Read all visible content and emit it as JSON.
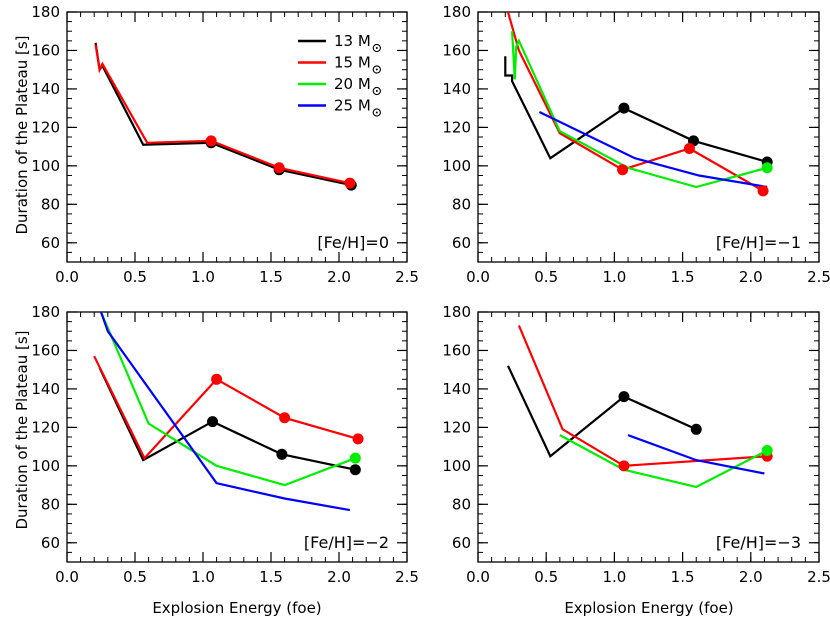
{
  "figure": {
    "ylabel": "Duration of the Plateau [s]",
    "xlabel": "Explosion Energy (foe)"
  },
  "legend": [
    {
      "mass": "13",
      "unit": "M",
      "color": "#000000"
    },
    {
      "mass": "15",
      "unit": "M",
      "color": "#ff0000"
    },
    {
      "mass": "20",
      "unit": "M",
      "color": "#00ee00"
    },
    {
      "mass": "25",
      "unit": "M",
      "color": "#0000ff"
    }
  ],
  "chart_data": [
    {
      "type": "line",
      "annotation": "[Fe/H]=0",
      "xlim": [
        0.0,
        2.5
      ],
      "ylim": [
        50,
        180
      ],
      "xticks": [
        "0.0",
        "0.5",
        "1.0",
        "1.5",
        "2.0",
        "2.5"
      ],
      "yticks": [
        "60",
        "80",
        "100",
        "120",
        "140",
        "160",
        "180"
      ],
      "series": [
        {
          "name": "13 M☉",
          "color": "#000000",
          "x": [
            0.21,
            0.24,
            0.26,
            0.56,
            1.06,
            1.56,
            2.09
          ],
          "y": [
            164,
            150,
            152,
            111,
            112,
            98,
            90
          ],
          "markers": [
            [
              1.06,
              112
            ],
            [
              1.56,
              98
            ],
            [
              2.09,
              90
            ]
          ]
        },
        {
          "name": "15 M☉",
          "color": "#ff0000",
          "x": [
            0.21,
            0.24,
            0.26,
            0.59,
            1.06,
            1.56,
            2.08
          ],
          "y": [
            163,
            150,
            153,
            112,
            113,
            99,
            91
          ],
          "markers": [
            [
              1.06,
              113
            ],
            [
              1.56,
              99
            ],
            [
              2.08,
              91
            ]
          ]
        }
      ]
    },
    {
      "type": "line",
      "annotation": "[Fe/H]=−1",
      "xlim": [
        0.0,
        2.5
      ],
      "ylim": [
        50,
        180
      ],
      "xticks": [
        "0.0",
        "0.5",
        "1.0",
        "1.5",
        "2.0",
        "2.5"
      ],
      "yticks": [
        "60",
        "80",
        "100",
        "120",
        "140",
        "160",
        "180"
      ],
      "series": [
        {
          "name": "13 M☉",
          "color": "#000000",
          "x": [
            0.2,
            0.2,
            0.22,
            0.25,
            0.25,
            0.53,
            1.07,
            1.58,
            2.12
          ],
          "y": [
            157,
            147,
            147,
            147,
            144,
            104,
            130,
            113,
            102
          ],
          "markers": [
            [
              1.07,
              130
            ],
            [
              1.58,
              113
            ],
            [
              2.12,
              102
            ]
          ]
        },
        {
          "name": "15 M☉",
          "color": "#ff0000",
          "x": [
            0.22,
            0.3,
            0.6,
            1.06,
            1.55,
            2.09
          ],
          "y": [
            180,
            160,
            117,
            98,
            109,
            87
          ],
          "markers": [
            [
              1.06,
              98
            ],
            [
              1.55,
              109
            ],
            [
              2.09,
              87
            ]
          ]
        },
        {
          "name": "20 M☉",
          "color": "#00ee00",
          "x": [
            0.25,
            0.27,
            0.28,
            0.3,
            0.6,
            1.1,
            1.6,
            2.12
          ],
          "y": [
            170,
            145,
            162,
            165,
            118,
            99,
            89,
            99
          ],
          "markers": [
            [
              2.12,
              99
            ]
          ]
        },
        {
          "name": "25 M☉",
          "color": "#0000ff",
          "x": [
            0.45,
            1.15,
            1.62,
            2.12
          ],
          "y": [
            128,
            104,
            95,
            89
          ],
          "markers": []
        }
      ]
    },
    {
      "type": "line",
      "annotation": "[Fe/H]=−2",
      "xlim": [
        0.0,
        2.5
      ],
      "ylim": [
        50,
        180
      ],
      "xticks": [
        "0.0",
        "0.5",
        "1.0",
        "1.5",
        "2.0",
        "2.5"
      ],
      "yticks": [
        "60",
        "80",
        "100",
        "120",
        "140",
        "160",
        "180"
      ],
      "series": [
        {
          "name": "13 M☉",
          "color": "#000000",
          "x": [
            0.24,
            0.56,
            1.07,
            1.58,
            2.12
          ],
          "y": [
            151,
            103,
            123,
            106,
            98
          ],
          "markers": [
            [
              1.07,
              123
            ],
            [
              1.58,
              106
            ],
            [
              2.12,
              98
            ]
          ]
        },
        {
          "name": "15 M☉",
          "color": "#ff0000",
          "x": [
            0.2,
            0.57,
            1.1,
            1.6,
            2.14
          ],
          "y": [
            157,
            104,
            145,
            125,
            114
          ],
          "markers": [
            [
              1.1,
              145
            ],
            [
              1.6,
              125
            ],
            [
              2.14,
              114
            ]
          ]
        },
        {
          "name": "20 M☉",
          "color": "#00ee00",
          "x": [
            0.25,
            0.6,
            1.1,
            1.6,
            2.12
          ],
          "y": [
            180,
            122,
            100,
            90,
            104
          ],
          "markers": [
            [
              2.12,
              104
            ]
          ]
        },
        {
          "name": "25 M☉",
          "color": "#0000ff",
          "x": [
            0.25,
            0.3,
            1.1,
            1.6,
            2.08
          ],
          "y": [
            180,
            170,
            91,
            83,
            77
          ],
          "markers": []
        }
      ]
    },
    {
      "type": "line",
      "annotation": "[Fe/H]=−3",
      "xlim": [
        0.0,
        2.5
      ],
      "ylim": [
        50,
        180
      ],
      "xticks": [
        "0.0",
        "0.5",
        "1.0",
        "1.5",
        "2.0",
        "2.5"
      ],
      "yticks": [
        "60",
        "80",
        "100",
        "120",
        "140",
        "160",
        "180"
      ],
      "series": [
        {
          "name": "13 M☉",
          "color": "#000000",
          "x": [
            0.22,
            0.53,
            1.07,
            1.6
          ],
          "y": [
            152,
            105,
            136,
            119
          ],
          "markers": [
            [
              1.07,
              136
            ],
            [
              1.6,
              119
            ]
          ]
        },
        {
          "name": "15 M☉",
          "color": "#ff0000",
          "x": [
            0.3,
            0.62,
            1.07,
            2.12
          ],
          "y": [
            173,
            119,
            100,
            105
          ],
          "markers": [
            [
              1.07,
              100
            ],
            [
              2.12,
              105
            ]
          ]
        },
        {
          "name": "20 M☉",
          "color": "#00ee00",
          "x": [
            0.6,
            1.07,
            1.6,
            2.12
          ],
          "y": [
            116,
            98,
            89,
            108
          ],
          "markers": [
            [
              2.12,
              108
            ]
          ]
        },
        {
          "name": "25 M☉",
          "color": "#0000ff",
          "x": [
            1.1,
            1.6,
            2.1
          ],
          "y": [
            116,
            103,
            96
          ],
          "markers": []
        }
      ]
    }
  ]
}
